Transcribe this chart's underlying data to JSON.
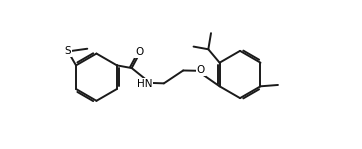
{
  "background_color": "#ffffff",
  "bond_color": "#1a1a1a",
  "line_width": 1.4,
  "figsize": [
    3.62,
    1.49
  ],
  "dpi": 100,
  "xlim": [
    0.0,
    10.0
  ],
  "ylim": [
    0.0,
    5.5
  ]
}
